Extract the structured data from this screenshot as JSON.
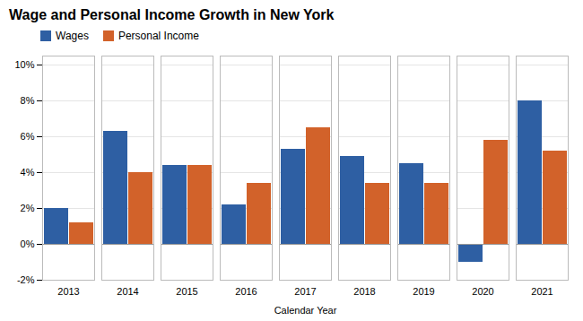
{
  "chart_data": {
    "type": "bar",
    "title": "Wage and Personal Income Growth in New York",
    "xlabel": "Calendar Year",
    "categories": [
      "2013",
      "2014",
      "2015",
      "2016",
      "2017",
      "2018",
      "2019",
      "2020",
      "2021"
    ],
    "series": [
      {
        "name": "Wages",
        "color": "#2e5fa3",
        "values": [
          2.0,
          6.3,
          4.4,
          2.2,
          5.3,
          4.9,
          4.5,
          -1.0,
          8.0
        ]
      },
      {
        "name": "Personal Income",
        "color": "#d2622a",
        "values": [
          1.2,
          4.0,
          4.4,
          3.4,
          6.5,
          3.4,
          3.4,
          5.8,
          5.2
        ]
      }
    ],
    "ylim": [
      -2,
      10.5
    ],
    "yticks": [
      {
        "value": -2,
        "label": "-2%"
      },
      {
        "value": 0,
        "label": "0%"
      },
      {
        "value": 2,
        "label": "2%"
      },
      {
        "value": 4,
        "label": "4%"
      },
      {
        "value": 6,
        "label": "6%"
      },
      {
        "value": 8,
        "label": "8%"
      },
      {
        "value": 10,
        "label": "10%"
      }
    ],
    "grid": true,
    "legend": "upper left"
  }
}
